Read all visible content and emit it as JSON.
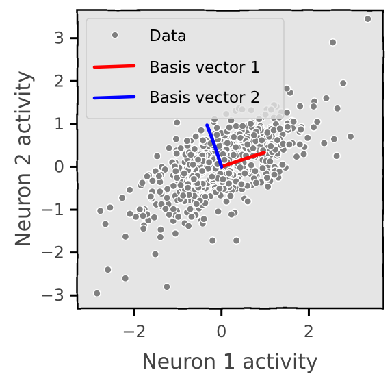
{
  "chart_data": {
    "type": "scatter",
    "title": "",
    "xlabel": "Neuron 1 activity",
    "ylabel": "Neuron 2 activity",
    "xlim": [
      -3.3,
      3.7
    ],
    "ylim": [
      -3.3,
      3.65
    ],
    "xticks": [
      -2,
      0,
      2
    ],
    "yticks": [
      -3,
      -2,
      -1,
      0,
      1,
      2,
      3
    ],
    "grid": false,
    "legend": {
      "position": "top-left",
      "entries": [
        "Data",
        "Basis vector 1",
        "Basis vector 2"
      ]
    },
    "series": [
      {
        "name": "Data",
        "kind": "scatter",
        "color": "#808080",
        "edge_color": "#ffffff",
        "n_points": 600,
        "mean": [
          0.05,
          0.05
        ],
        "spread_major": 1.05,
        "spread_minor": 0.42,
        "major_axis_angle_deg": 29,
        "outliers": [
          [
            3.35,
            3.45
          ],
          [
            -2.85,
            -2.95
          ],
          [
            -1.25,
            -2.8
          ],
          [
            -2.6,
            -2.4
          ],
          [
            -2.2,
            -2.6
          ],
          [
            -2.55,
            -0.95
          ],
          [
            2.55,
            2.9
          ],
          [
            2.4,
            1.6
          ],
          [
            2.35,
            0.55
          ]
        ]
      },
      {
        "name": "Basis vector 1",
        "kind": "line",
        "color": "#ff0000",
        "points": [
          [
            0.0,
            0.0
          ],
          [
            0.49,
            0.18
          ],
          [
            0.98,
            0.33
          ]
        ]
      },
      {
        "name": "Basis vector 2",
        "kind": "line",
        "color": "#0000ff",
        "points": [
          [
            0.0,
            0.0
          ],
          [
            -0.13,
            0.45
          ],
          [
            -0.33,
            0.97
          ]
        ]
      }
    ],
    "colors": {
      "plot_background": "#e5e5e5",
      "page_background": "#ffffff",
      "axis": "#000000",
      "label_text": "#444444"
    }
  }
}
